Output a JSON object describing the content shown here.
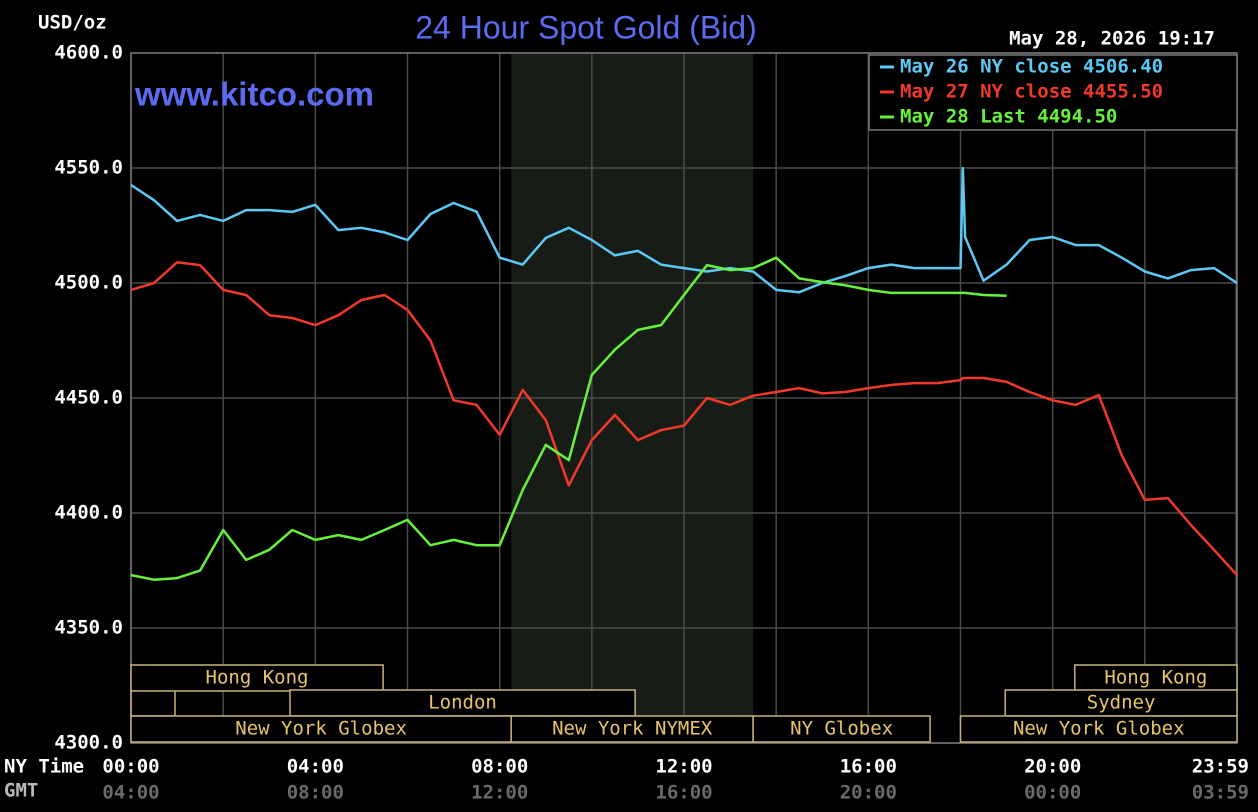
{
  "chart_data": {
    "type": "line",
    "title": "24 Hour Spot Gold (Bid)",
    "watermark": "www.kitco.com",
    "timestamp": "May 28, 2026 19:17",
    "ylabel": "USD/oz",
    "xlabel_primary": "NY Time",
    "xlabel_secondary": "GMT",
    "xlim": [
      0,
      24
    ],
    "ylim": [
      4300,
      4600
    ],
    "yticks": [
      {
        "value": 4300,
        "label": "4300.0"
      },
      {
        "value": 4350,
        "label": "4350.0"
      },
      {
        "value": 4400,
        "label": "4400.0"
      },
      {
        "value": 4450,
        "label": "4450.0"
      },
      {
        "value": 4500,
        "label": "4500.0"
      },
      {
        "value": 4550,
        "label": "4550.0"
      },
      {
        "value": 4600,
        "label": "4600.0"
      }
    ],
    "xticks": [
      {
        "value": 0,
        "label": "00:00"
      },
      {
        "value": 4,
        "label": "04:00"
      },
      {
        "value": 8,
        "label": "08:00"
      },
      {
        "value": 12,
        "label": "12:00"
      },
      {
        "value": 16,
        "label": "16:00"
      },
      {
        "value": 20,
        "label": "20:00"
      },
      {
        "value": 23.98,
        "label": "23:59"
      }
    ],
    "gmt_labels": [
      "04:00",
      "08:00",
      "12:00",
      "16:00",
      "20:00",
      "00:00",
      "03:59"
    ],
    "xgrid": [
      2,
      6,
      10,
      14,
      18,
      22
    ],
    "grid": true,
    "highlight": [
      8.25,
      13.5
    ],
    "sessions": [
      [
        {
          "label": "Hong Kong",
          "start": 0,
          "end": 5.47
        },
        {
          "label": "Hong Kong",
          "start": 20.48,
          "end": 24
        }
      ],
      [
        {
          "label": "London",
          "start": 3.45,
          "end": 10.94
        },
        {
          "label": "Sydney",
          "start": 18.97,
          "end": 24
        }
      ],
      [
        {
          "label": "New York Globex",
          "start": 0,
          "end": 8.25
        },
        {
          "label": "New York NYMEX",
          "start": 8.25,
          "end": 13.5
        },
        {
          "label": "NY Globex",
          "start": 13.5,
          "end": 17.34
        },
        {
          "label": "New York Globex",
          "start": 18,
          "end": 24
        }
      ]
    ],
    "x": [
      0,
      0.5,
      1,
      1.5,
      2,
      2.5,
      3,
      3.5,
      4,
      4.5,
      5,
      5.5,
      6,
      6.5,
      7,
      7.5,
      8,
      8.5,
      9,
      9.5,
      10,
      10.5,
      11,
      11.5,
      12,
      12.5,
      13,
      13.5,
      14,
      14.5,
      15,
      15.5,
      16,
      16.5,
      17,
      17.5,
      18,
      18.05,
      18.1,
      18.5,
      19,
      19.5,
      20,
      20.5,
      21,
      21.5,
      22,
      22.5,
      23,
      23.5,
      24
    ],
    "series": [
      {
        "name": "May 26 NY close 4506.40",
        "color": "#5cc8f4",
        "values": [
          4542.6,
          4536,
          4527,
          4529.6,
          4527,
          4531.7,
          4531.7,
          4530.9,
          4534,
          4523,
          4524,
          4522,
          4518.7,
          4530,
          4534.8,
          4531,
          4511,
          4508,
          4519.6,
          4524,
          4518.7,
          4512,
          4514,
          4508,
          4506.5,
          4505,
          4506.5,
          4505,
          4497,
          4496,
          4500,
          4503,
          4506.5,
          4508,
          4506.5,
          4506.5,
          4506.5,
          4550,
          4520,
          4501,
          4508,
          4518.7,
          4520,
          4516.5,
          4516.5,
          4511,
          4505,
          4502,
          4505.6,
          4506.5,
          4500
        ]
      },
      {
        "name": "May 27 NY close 4455.50",
        "color": "#f0392a",
        "values": [
          4497,
          4500,
          4509,
          4507.8,
          4497,
          4494.8,
          4486,
          4484.8,
          4481.7,
          4486,
          4492.6,
          4494.8,
          4488.3,
          4475,
          4449,
          4447,
          4434,
          4453.5,
          4440.4,
          4412,
          4431.7,
          4442.6,
          4431.7,
          4436,
          4438,
          4450,
          4447,
          4451,
          4452.6,
          4454.3,
          4452,
          4452.6,
          4454.3,
          4455.7,
          4456.5,
          4456.5,
          4457.8,
          4458.7,
          4458.7,
          4458.7,
          4457,
          4452.6,
          4449,
          4447,
          4451.3,
          4425,
          4405.7,
          4406.5,
          4394.8,
          4384,
          4373
        ]
      },
      {
        "name": "May 28 Last 4494.50",
        "color": "#66f23c",
        "values": [
          4373,
          4371,
          4371.7,
          4375,
          4392.6,
          4379.6,
          4384,
          4392.6,
          4388.3,
          4390.4,
          4388.3,
          4392.6,
          4397,
          4386,
          4388.3,
          4386,
          4386,
          4410,
          4429.6,
          4423,
          4460,
          4471,
          4479.6,
          4481.7,
          4494.8,
          4507.8,
          4505.6,
          4506.5,
          4511,
          4502,
          4500.4,
          4499,
          4497,
          4495.7,
          4495.7,
          4495.7,
          4495.7,
          4495.7,
          4495.7,
          4494.8,
          4494.5,
          null,
          null,
          null,
          null,
          null,
          null,
          null,
          null,
          null,
          null
        ]
      }
    ]
  }
}
